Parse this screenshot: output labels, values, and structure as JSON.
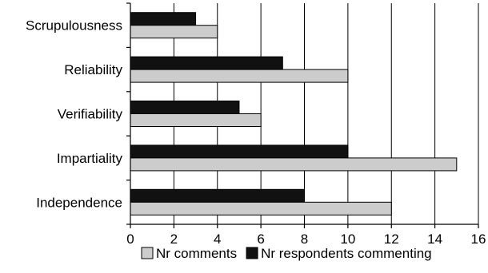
{
  "chart_data": {
    "type": "bar",
    "orientation": "horizontal",
    "categories": [
      "Scrupulousness",
      "Reliability",
      "Verifiability",
      "Impartiality",
      "Independence"
    ],
    "series": [
      {
        "name": "Nr respondents commenting",
        "values": [
          3,
          7,
          5,
          10,
          8
        ],
        "color": "#111111"
      },
      {
        "name": "Nr comments",
        "values": [
          4,
          10,
          6,
          15,
          12
        ],
        "color": "#cccccc"
      }
    ],
    "xlim": [
      0,
      16
    ],
    "xticks": [
      0,
      2,
      4,
      6,
      8,
      10,
      12,
      14,
      16
    ],
    "grid": true,
    "legend": {
      "placement": "bottom",
      "entries": [
        {
          "label": "Nr comments",
          "color": "#cccccc"
        },
        {
          "label": "Nr respondents commenting",
          "color": "#111111"
        }
      ]
    }
  }
}
